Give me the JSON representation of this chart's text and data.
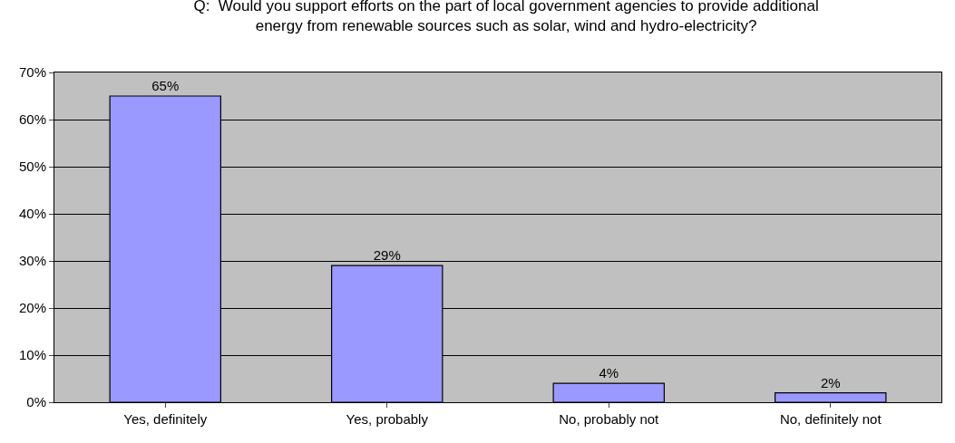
{
  "chart_data": {
    "type": "bar",
    "title": "Q:  Would you support efforts on the part of local government agencies to provide additional\nenergy from renewable sources such as solar, wind and hydro-electricity?",
    "categories": [
      "Yes, definitely",
      "Yes, probably",
      "No, probably not",
      "No, definitely not"
    ],
    "values": [
      65,
      29,
      4,
      2
    ],
    "value_labels": [
      "65%",
      "29%",
      "4%",
      "2%"
    ],
    "color": "#9999ff",
    "ylim": [
      0,
      70
    ],
    "yticks": [
      {
        "value": 0,
        "label": "0%"
      },
      {
        "value": 10,
        "label": "10%"
      },
      {
        "value": 20,
        "label": "20%"
      },
      {
        "value": 30,
        "label": "30%"
      },
      {
        "value": 40,
        "label": "40%"
      },
      {
        "value": 50,
        "label": "50%"
      },
      {
        "value": 60,
        "label": "60%"
      },
      {
        "value": 70,
        "label": "70%"
      }
    ],
    "grid": "y",
    "legend": false
  }
}
